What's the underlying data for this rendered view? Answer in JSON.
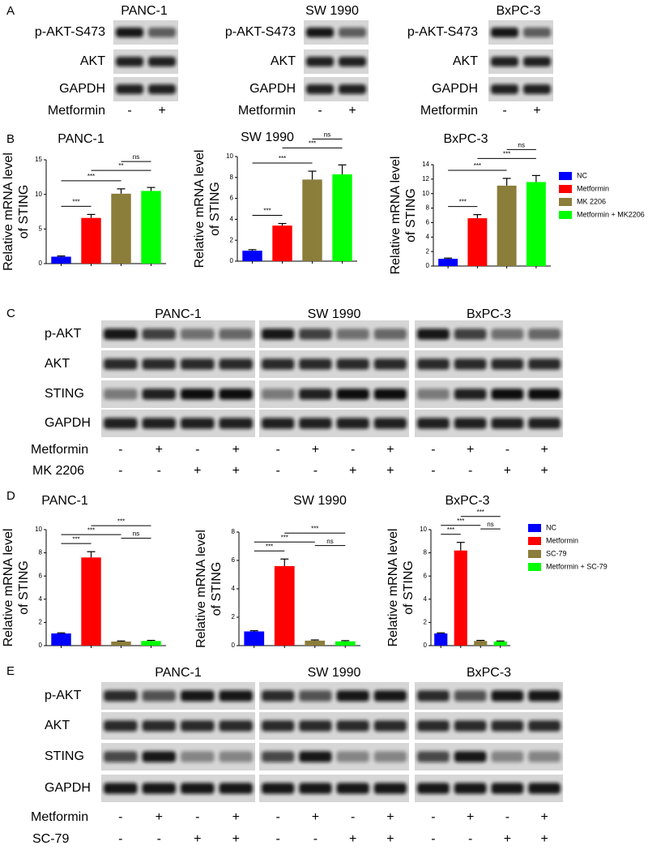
{
  "panel_labels": [
    "A",
    "B",
    "C",
    "D",
    "E"
  ],
  "panel_a": [
    {
      "title": "PANC-1",
      "rows": [
        "p-AKT-S473",
        "AKT",
        "GAPDH"
      ],
      "treatment": "Metformin",
      "signs": [
        "-",
        "+"
      ]
    },
    {
      "title": "SW 1990",
      "rows": [
        "p-AKT-S473",
        "AKT",
        "GAPDH"
      ],
      "treatment": "Metformin",
      "signs": [
        "-",
        "+"
      ]
    },
    {
      "title": "BxPC-3",
      "rows": [
        "p-AKT-S473",
        "AKT",
        "GAPDH"
      ],
      "treatment": "Metformin",
      "signs": [
        "-",
        "+"
      ]
    }
  ],
  "legend_b": [
    {
      "name": "NC",
      "color": "#0000ff"
    },
    {
      "name": "Metformin",
      "color": "#ff0000"
    },
    {
      "name": "MK 2206",
      "color": "#8b7d3a"
    },
    {
      "name": "Metformin + MK2206",
      "color": "#00ff00"
    }
  ],
  "legend_d": [
    {
      "name": "NC",
      "color": "#0000ff"
    },
    {
      "name": "Metformin",
      "color": "#ff0000"
    },
    {
      "name": "SC-79",
      "color": "#8b7d3a"
    },
    {
      "name": "Metformin + SC-79",
      "color": "#00ff00"
    }
  ],
  "chart_data": [
    {
      "type": "bar",
      "title": "PANC-1",
      "ylabel": [
        "Relative mRNA level",
        "of STING"
      ],
      "values": [
        1,
        6.6,
        10.1,
        10.5
      ],
      "errors": [
        0.1,
        0.5,
        0.7,
        0.5
      ],
      "colors": [
        "#0000ff",
        "#ff0000",
        "#8b7d3a",
        "#00ff00"
      ],
      "ylim": [
        0,
        15
      ],
      "yticks": [
        0,
        5,
        10,
        15
      ],
      "significance": [
        "***",
        "***",
        "**",
        "ns"
      ]
    },
    {
      "type": "bar",
      "title": "SW 1990",
      "ylabel": [
        "Relative mRNA level",
        "of STING"
      ],
      "values": [
        1,
        3.4,
        7.8,
        8.3
      ],
      "errors": [
        0.1,
        0.2,
        0.8,
        0.9
      ],
      "colors": [
        "#0000ff",
        "#ff0000",
        "#8b7d3a",
        "#00ff00"
      ],
      "ylim": [
        0,
        10
      ],
      "yticks": [
        0,
        2,
        4,
        6,
        8,
        10
      ],
      "significance": [
        "***",
        "***",
        "***",
        "ns"
      ]
    },
    {
      "type": "bar",
      "title": "BxPC-3",
      "ylabel": [
        "Relative mRNA level",
        "of STING"
      ],
      "values": [
        1,
        6.6,
        11.1,
        11.6
      ],
      "errors": [
        0.1,
        0.5,
        1.0,
        0.9
      ],
      "colors": [
        "#0000ff",
        "#ff0000",
        "#8b7d3a",
        "#00ff00"
      ],
      "ylim": [
        0,
        14
      ],
      "yticks": [
        0,
        2,
        4,
        6,
        8,
        10,
        12,
        14
      ],
      "significance": [
        "***",
        "***",
        "***",
        "ns"
      ]
    },
    {
      "type": "bar",
      "title": "PANC-1",
      "ylabel": [
        "Relative mRNA level",
        "of STING"
      ],
      "values": [
        1.05,
        7.6,
        0.35,
        0.4
      ],
      "errors": [
        0.05,
        0.5,
        0.05,
        0.05
      ],
      "colors": [
        "#0000ff",
        "#ff0000",
        "#8b7d3a",
        "#00ff00"
      ],
      "ylim": [
        0,
        10
      ],
      "yticks": [
        0,
        2,
        4,
        6,
        8,
        10
      ],
      "significance": [
        "***",
        "***",
        "***",
        "ns"
      ]
    },
    {
      "type": "bar",
      "title": "SW 1990",
      "ylabel": [
        "Relative mRNA level",
        "of STING"
      ],
      "values": [
        1.0,
        5.6,
        0.35,
        0.3
      ],
      "errors": [
        0.05,
        0.5,
        0.05,
        0.05
      ],
      "colors": [
        "#0000ff",
        "#ff0000",
        "#8b7d3a",
        "#00ff00"
      ],
      "ylim": [
        0,
        8
      ],
      "yticks": [
        0,
        2,
        4,
        6,
        8
      ],
      "significance": [
        "***",
        "***",
        "***",
        "ns"
      ]
    },
    {
      "type": "bar",
      "title": "BxPC-3",
      "ylabel": [
        "Relative mRNA level",
        "of STING"
      ],
      "values": [
        1.05,
        8.2,
        0.4,
        0.35
      ],
      "errors": [
        0.05,
        0.7,
        0.05,
        0.05
      ],
      "colors": [
        "#0000ff",
        "#ff0000",
        "#8b7d3a",
        "#00ff00"
      ],
      "ylim": [
        0,
        10
      ],
      "yticks": [
        0,
        2,
        4,
        6,
        8,
        10
      ],
      "significance": [
        "***",
        "***",
        "***",
        "ns"
      ]
    }
  ],
  "panel_c": {
    "titles": [
      "PANC-1",
      "SW 1990",
      "BxPC-3"
    ],
    "rows": [
      "p-AKT",
      "AKT",
      "STING",
      "GAPDH"
    ],
    "treatments": [
      {
        "name": "Metformin",
        "signs": [
          "-",
          "+",
          "-",
          "+",
          "-",
          "+",
          "-",
          "+",
          "-",
          "+",
          "-",
          "+"
        ]
      },
      {
        "name": "MK 2206",
        "signs": [
          "-",
          "-",
          "+",
          "+",
          "-",
          "-",
          "+",
          "+",
          "-",
          "-",
          "+",
          "+"
        ]
      }
    ]
  },
  "panel_e": {
    "titles": [
      "PANC-1",
      "SW 1990",
      "BxPC-3"
    ],
    "rows": [
      "p-AKT",
      "AKT",
      "STING",
      "GAPDH"
    ],
    "treatments": [
      {
        "name": "Metformin",
        "signs": [
          "-",
          "+",
          "-",
          "+",
          "-",
          "+",
          "-",
          "+",
          "-",
          "+",
          "-",
          "+"
        ]
      },
      {
        "name": "SC-79",
        "signs": [
          "-",
          "-",
          "+",
          "+",
          "-",
          "-",
          "+",
          "+",
          "-",
          "-",
          "+",
          "+"
        ]
      }
    ]
  }
}
